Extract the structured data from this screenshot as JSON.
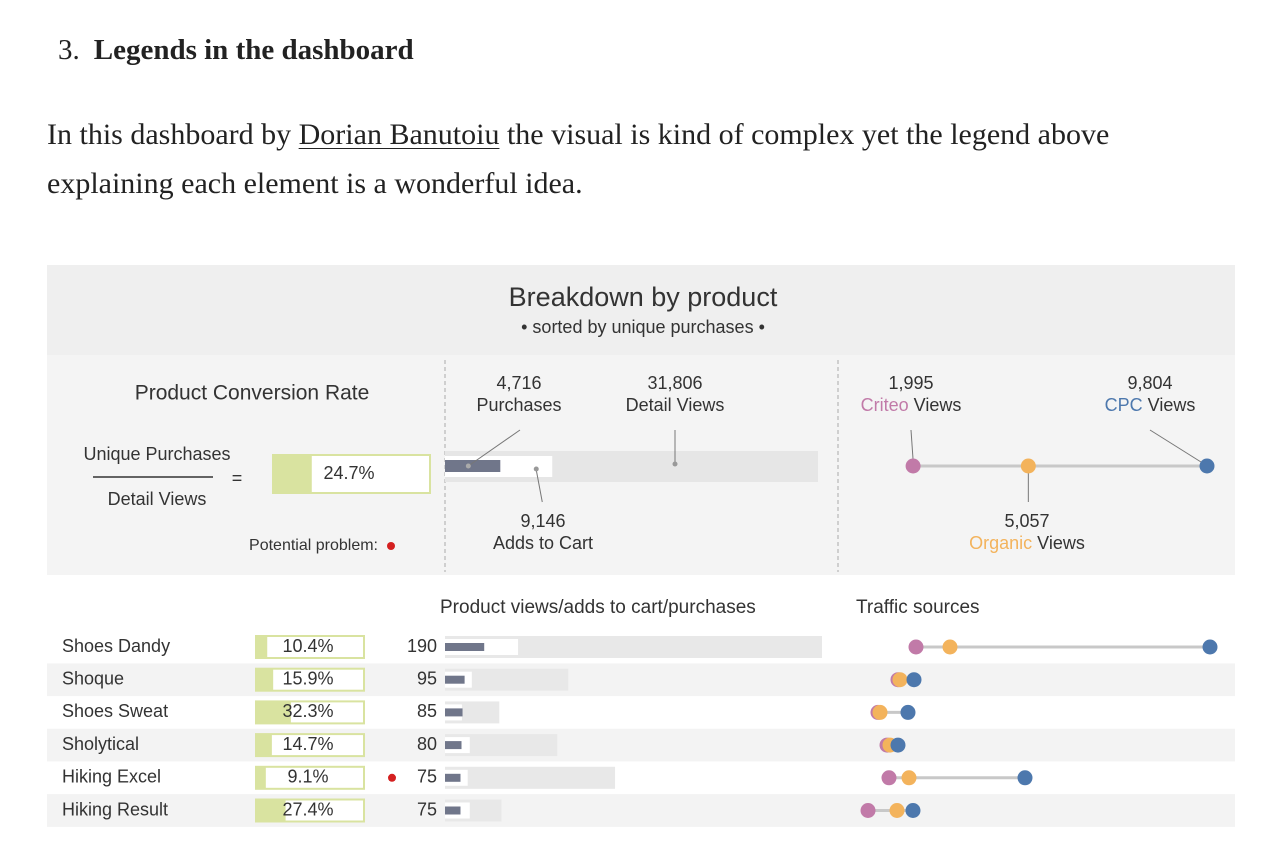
{
  "heading": {
    "number": "3.",
    "title": "Legends in the dashboard"
  },
  "paragraph": {
    "before": "In this dashboard by",
    "link": "Dorian Banutoiu",
    "after": "the visual is kind of complex yet the legend above explaining each element is a wonderful idea."
  },
  "dashboard": {
    "title": "Breakdown by product",
    "subtitle": "• sorted by unique purchases •",
    "conversion_legend": {
      "title": "Product Conversion Rate",
      "numerator": "Unique Purchases",
      "operator": "=",
      "denominator": "Detail Views",
      "rate": {
        "value": 24.7,
        "label": "24.7%"
      },
      "problem_label": "Potential problem:"
    },
    "funnel_legend": {
      "purchases": {
        "value": 4716,
        "label": "4,716",
        "name": "Purchases"
      },
      "detail_views": {
        "value": 31806,
        "label": "31,806",
        "name": "Detail Views"
      },
      "adds_to_cart": {
        "value": 9146,
        "label": "9,146",
        "name": "Adds to Cart"
      }
    },
    "traffic_legend": {
      "criteo": {
        "value": 1995,
        "label": "1,995",
        "source": "Criteo",
        "unit": "Views"
      },
      "cpc": {
        "value": 9804,
        "label": "9,804",
        "source": "CPC",
        "unit": "Views"
      },
      "organic": {
        "value": 5057,
        "label": "5,057",
        "source": "Organic",
        "unit": "Views"
      }
    },
    "table": {
      "funnel_header": "Product views/adds to cart/purchases",
      "traffic_header": "Traffic sources",
      "rows": [
        {
          "product": "Shoes Dandy",
          "rate": {
            "value": 10.4,
            "label": "10.4%"
          },
          "problem": false,
          "purchases": 190,
          "adds_to_cart": 354,
          "detail_views": 1827,
          "criteo": 1436,
          "organic": 2340,
          "cpc": 9255
        },
        {
          "product": "Shoque",
          "rate": {
            "value": 15.9,
            "label": "15.9%"
          },
          "problem": false,
          "purchases": 95,
          "adds_to_cart": 130,
          "detail_views": 597,
          "criteo": 957,
          "organic": 1010,
          "cpc": 1383
        },
        {
          "product": "Shoes Sweat",
          "rate": {
            "value": 32.3,
            "label": "32.3%"
          },
          "problem": false,
          "purchases": 85,
          "adds_to_cart": 82,
          "detail_views": 263,
          "criteo": 425,
          "organic": 479,
          "cpc": 1223
        },
        {
          "product": "Sholytical",
          "rate": {
            "value": 14.7,
            "label": "14.7%"
          },
          "problem": false,
          "purchases": 80,
          "adds_to_cart": 120,
          "detail_views": 544,
          "criteo": 665,
          "organic": 745,
          "cpc": 957
        },
        {
          "product": "Hiking Excel",
          "rate": {
            "value": 9.1,
            "label": "9.1%"
          },
          "problem": true,
          "purchases": 75,
          "adds_to_cart": 110,
          "detail_views": 824,
          "criteo": 718,
          "organic": 1250,
          "cpc": 4335
        },
        {
          "product": "Hiking Result",
          "rate": {
            "value": 27.4,
            "label": "27.4%"
          },
          "problem": false,
          "purchases": 75,
          "adds_to_cart": 120,
          "detail_views": 274,
          "criteo": 160,
          "organic": 931,
          "cpc": 1356
        }
      ]
    }
  }
}
